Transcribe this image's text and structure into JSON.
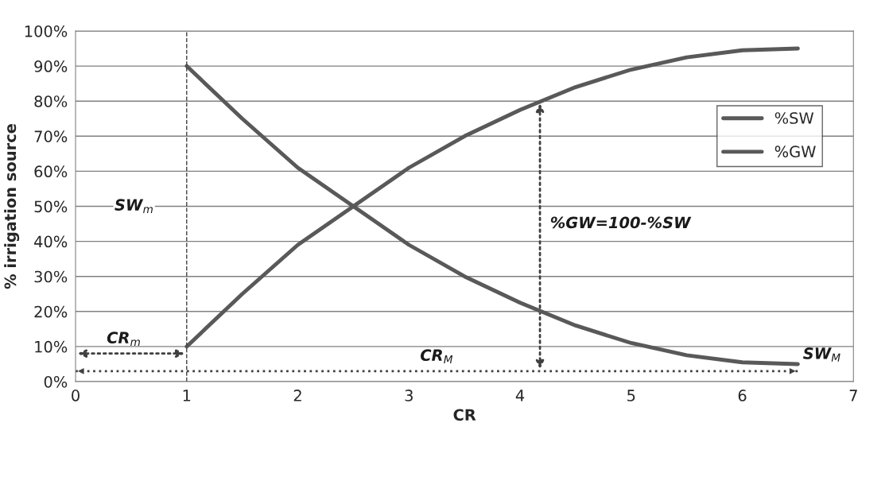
{
  "chart_data": {
    "type": "line",
    "xlabel": "CR",
    "ylabel": "% irrigation source",
    "x": [
      1,
      1.5,
      2,
      2.5,
      3,
      3.5,
      4,
      4.5,
      5,
      5.5,
      6,
      6.5
    ],
    "series": [
      {
        "name": "%SW",
        "color": "#595959",
        "values": [
          90,
          75,
          61,
          50,
          39,
          30,
          22.5,
          16,
          11,
          7.5,
          5.5,
          5
        ]
      },
      {
        "name": "%GW",
        "color": "#595959",
        "values": [
          10,
          25,
          39,
          50,
          61,
          70,
          77.5,
          84,
          89,
          92.5,
          94.5,
          95
        ]
      }
    ],
    "xlim": [
      0,
      7
    ],
    "xticks": [
      0,
      1,
      2,
      3,
      4,
      5,
      6,
      7
    ],
    "ylim": [
      0,
      100
    ],
    "yticks": [
      {
        "value": 0,
        "label": "0%"
      },
      {
        "value": 10,
        "label": "10%"
      },
      {
        "value": 20,
        "label": "20%"
      },
      {
        "value": 30,
        "label": "30%"
      },
      {
        "value": 40,
        "label": "40%"
      },
      {
        "value": 50,
        "label": "50%"
      },
      {
        "value": 60,
        "label": "60%"
      },
      {
        "value": 70,
        "label": "70%"
      },
      {
        "value": 80,
        "label": "80%"
      },
      {
        "value": 90,
        "label": "90%"
      },
      {
        "value": 100,
        "label": "100%"
      }
    ],
    "grid": "y",
    "legend": "right",
    "marker": "none",
    "line_style": "solid",
    "ref_lines": [
      {
        "axis": "x",
        "value": 1,
        "color": "#404040",
        "line_style": "dashed"
      },
      {
        "axis": "y",
        "value": 3,
        "label": "CR$_{M}$",
        "color": "#404040",
        "line_style": "dotted"
      }
    ],
    "annotations": [
      "SW$_{m}$",
      "CR$_{m}$",
      "SW$_{M}$",
      "%GW=100-%SW"
    ]
  }
}
